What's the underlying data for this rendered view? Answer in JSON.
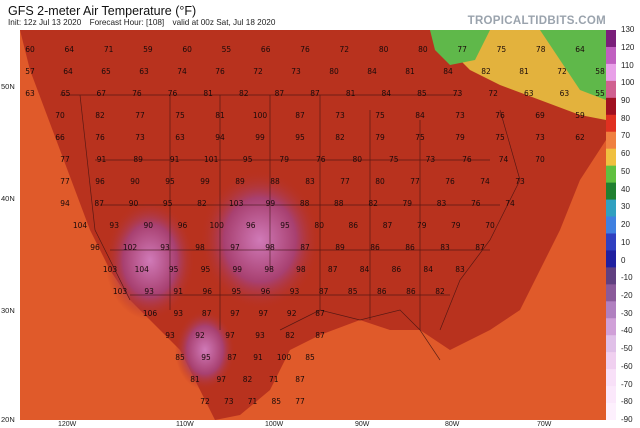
{
  "header": {
    "title": "GFS 2-meter Air Temperature (°F)",
    "init": "Init: 12z Jul 13 2020",
    "forecast_hour": "Forecast Hour: [108]",
    "valid": "valid at 00z Sat, Jul 18 2020",
    "brand": "TROPICALTIDBITS.COM"
  },
  "axes": {
    "lat_labels": [
      "50N",
      "40N",
      "30N",
      "20N"
    ],
    "lon_labels": [
      "120W",
      "110W",
      "100W",
      "90W",
      "80W",
      "70W"
    ]
  },
  "colorbar": {
    "labels": [
      "130",
      "120",
      "110",
      "100",
      "90",
      "80",
      "70",
      "60",
      "50",
      "40",
      "30",
      "20",
      "10",
      "0",
      "-10",
      "-20",
      "-30",
      "-40",
      "-50",
      "-60",
      "-70",
      "-80",
      "-90"
    ],
    "colors": [
      "#7a1f7a",
      "#c060c0",
      "#e8a0e8",
      "#d06090",
      "#a01020",
      "#e03020",
      "#f08040",
      "#f0c040",
      "#60c040",
      "#208030",
      "#30a0c0",
      "#4080e0",
      "#3040c0",
      "#2020a0",
      "#604080",
      "#8a5a9a",
      "#b080c0",
      "#d0a0d8",
      "#e0c0e8",
      "#f0d0f0",
      "#f8e0f8",
      "#fbe8fb",
      "#fdf0fd"
    ]
  },
  "map": {
    "ocean_color": "#e05a2a",
    "land_color": "#b8321e",
    "hot_color": "#9a2a55",
    "cool_color": "#e8c040",
    "forest_color": "#5fb84a",
    "temperatures": [
      "60",
      "64",
      "71",
      "59",
      "60",
      "55",
      "66",
      "76",
      "72",
      "80",
      "80",
      "77",
      "75",
      "78",
      "64",
      "57",
      "64",
      "65",
      "63",
      "74",
      "76",
      "72",
      "73",
      "80",
      "84",
      "81",
      "84",
      "82",
      "81",
      "72",
      "58",
      "63",
      "65",
      "67",
      "76",
      "76",
      "81",
      "82",
      "87",
      "87",
      "81",
      "84",
      "85",
      "73",
      "72",
      "63",
      "63",
      "55",
      "70",
      "82",
      "77",
      "75",
      "81",
      "100",
      "87",
      "73",
      "75",
      "84",
      "73",
      "76",
      "69",
      "59",
      "66",
      "76",
      "73",
      "63",
      "94",
      "99",
      "95",
      "82",
      "79",
      "75",
      "79",
      "75",
      "73",
      "62",
      "77",
      "91",
      "89",
      "91",
      "101",
      "95",
      "79",
      "76",
      "80",
      "75",
      "73",
      "76",
      "74",
      "70",
      "77",
      "96",
      "90",
      "95",
      "99",
      "89",
      "88",
      "83",
      "77",
      "80",
      "77",
      "76",
      "74",
      "73",
      "94",
      "87",
      "90",
      "95",
      "82",
      "103",
      "99",
      "88",
      "88",
      "82",
      "79",
      "83",
      "76",
      "74",
      "104",
      "93",
      "90",
      "96",
      "100",
      "96",
      "95",
      "80",
      "86",
      "87",
      "79",
      "79",
      "70",
      "96",
      "102",
      "93",
      "98",
      "97",
      "98",
      "87",
      "89",
      "86",
      "86",
      "83",
      "87",
      "103",
      "104",
      "95",
      "95",
      "99",
      "98",
      "98",
      "87",
      "84",
      "86",
      "84",
      "83",
      "103",
      "93",
      "91",
      "96",
      "95",
      "96",
      "93",
      "87",
      "85",
      "86",
      "86",
      "82",
      "106",
      "93",
      "87",
      "97",
      "97",
      "92",
      "87",
      "93",
      "92",
      "97",
      "93",
      "82",
      "87",
      "85",
      "95",
      "87",
      "91",
      "100",
      "85",
      "81",
      "97",
      "82",
      "71",
      "87",
      "72",
      "73",
      "71",
      "85",
      "77"
    ]
  }
}
